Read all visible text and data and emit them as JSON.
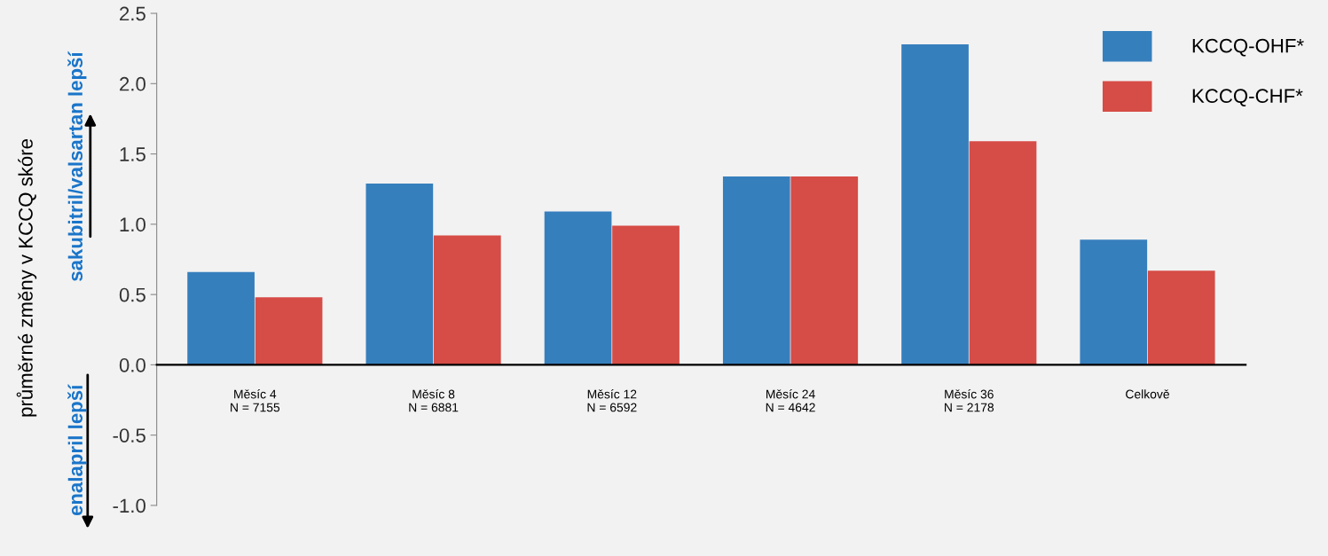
{
  "chart_data": {
    "type": "bar",
    "categories": [
      "Měsíc 4\nN = 7155",
      "Měsíc 8\nN = 6881",
      "Měsíc 12\nN = 6592",
      "Měsíc 24\nN = 4642",
      "Měsíc 36\nN = 2178",
      "Celkově"
    ],
    "series": [
      {
        "name": "KCCQ-OHF*",
        "color": "#367fbd",
        "values": [
          0.66,
          1.29,
          1.09,
          1.34,
          2.28,
          0.89
        ]
      },
      {
        "name": "KCCQ-CHF*",
        "color": "#d64c46",
        "values": [
          0.48,
          0.92,
          0.99,
          1.34,
          1.59,
          0.67
        ]
      }
    ],
    "ylabel": "průměrné změny v KCCQ skóre",
    "annotations": [
      "sakubitril/valsartan lepší",
      "enalapril lepší"
    ],
    "ylim": [
      -1.0,
      2.5
    ],
    "yticks": [
      {
        "value": -1.0,
        "label": "-1.0"
      },
      {
        "value": -0.5,
        "label": "-0.5"
      },
      {
        "value": 0.0,
        "label": "0.0"
      },
      {
        "value": 0.5,
        "label": "0.5"
      },
      {
        "value": 1.0,
        "label": "1.0"
      },
      {
        "value": 1.5,
        "label": "1.5"
      },
      {
        "value": 2.0,
        "label": "2.0"
      },
      {
        "value": 2.5,
        "label": "2.5"
      }
    ],
    "grid": false,
    "legend": "top right"
  }
}
